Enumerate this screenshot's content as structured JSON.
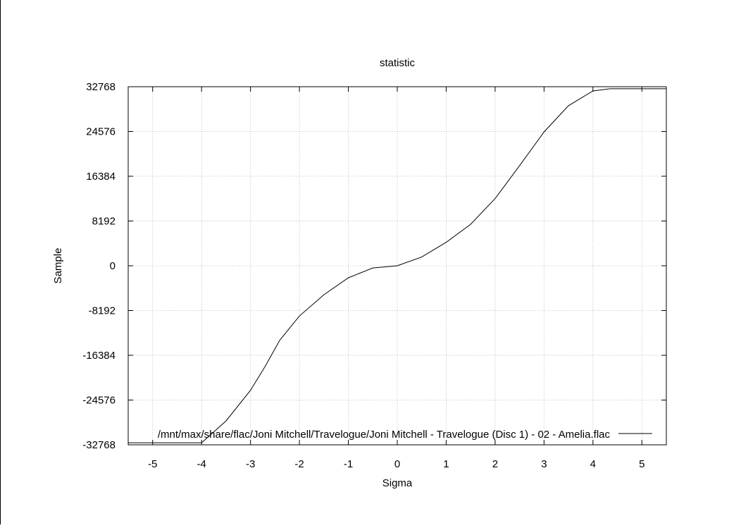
{
  "chart_data": {
    "type": "line",
    "title": "statistic",
    "xlabel": "Sigma",
    "ylabel": "Sample",
    "xlim": [
      -5.5,
      5.5
    ],
    "ylim": [
      -32768,
      32768
    ],
    "x_ticks": [
      -5,
      -4,
      -3,
      -2,
      -1,
      0,
      1,
      2,
      3,
      4,
      5
    ],
    "x_tick_labels": [
      "-5",
      "-4",
      "-3",
      "-2",
      "-1",
      "0",
      "1",
      "2",
      "3",
      "4",
      "5"
    ],
    "y_ticks": [
      32768,
      24576,
      16384,
      8192,
      0,
      -8192,
      -16384,
      -24576,
      -32768
    ],
    "y_tick_labels": [
      "32768",
      "24576",
      "16384",
      "8192",
      "0",
      "-8192",
      "-16384",
      "-24576",
      "-32768"
    ],
    "grid": true,
    "legend_position": "bottom",
    "series": [
      {
        "name": "/mnt/max/share/flac/Joni Mitchell/Travelogue/Joni Mitchell - Travelogue (Disc 1) - 02 - Amelia.flac",
        "color": "#000000",
        "x": [
          -5.5,
          -4.0,
          -3.8,
          -3.5,
          -3.0,
          -2.7,
          -2.4,
          -2.0,
          -1.5,
          -1.0,
          -0.5,
          0.0,
          0.5,
          1.0,
          1.5,
          2.0,
          2.5,
          3.0,
          3.5,
          4.0,
          4.35,
          5.5
        ],
        "y": [
          -32400,
          -32400,
          -30800,
          -28400,
          -22800,
          -18400,
          -13600,
          -9200,
          -5300,
          -2200,
          -400,
          0,
          1600,
          4300,
          7600,
          12300,
          18300,
          24500,
          29300,
          32000,
          32400,
          32400
        ]
      }
    ]
  }
}
